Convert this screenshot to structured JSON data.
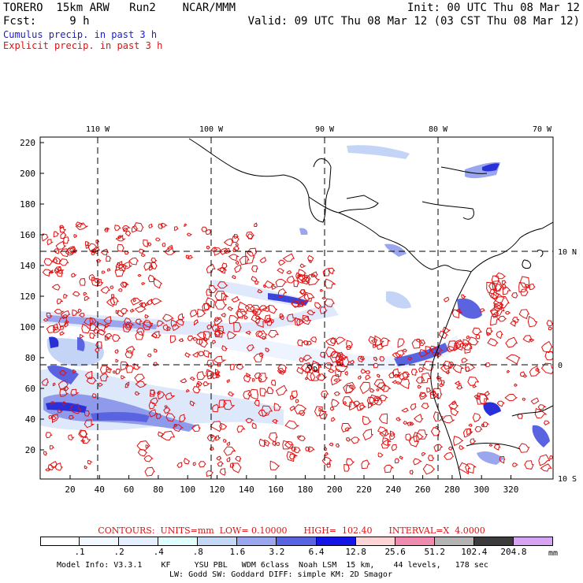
{
  "header": {
    "left_line1": "TORERO  15km ARW   Run2    NCAR/MMM",
    "left_line2": "Fcst:     9 h",
    "right_line1": "Init: 00 UTC Thu 08 Mar 12",
    "right_line2": "Valid: 09 UTC Thu 08 Mar 12 (03 CST Thu 08 Mar 12)",
    "cumulus_label": "Cumulus precip. in past 3 h",
    "explicit_label": "Explicit precip. in past 3 h"
  },
  "map": {
    "lon_labels": [
      "110 W",
      "100 W",
      "90 W",
      "80 W",
      "70 W"
    ],
    "lat_labels": [
      "10 N",
      "0",
      "10 S"
    ],
    "y_ticks": [
      "220",
      "200",
      "180",
      "160",
      "140",
      "120",
      "100",
      "80",
      "60",
      "40",
      "20"
    ],
    "x_ticks": [
      "20",
      "40",
      "60",
      "80",
      "100",
      "120",
      "140",
      "160",
      "180",
      "200",
      "220",
      "240",
      "260",
      "280",
      "300",
      "320"
    ]
  },
  "contours_caption": {
    "text": "CONTOURS:  UNITS=mm  LOW= 0.10000      HIGH=  102.40      INTERVAL=X  4.0000"
  },
  "colorbar": {
    "unit": "mm",
    "labels": [
      ".1",
      ".2",
      ".4",
      ".8",
      "1.6",
      "3.2",
      "6.4",
      "12.8",
      "25.6",
      "51.2",
      "102.4",
      "204.8"
    ],
    "colors": [
      "#ffffff",
      "#f2f8ff",
      "#e4f0ff",
      "#e0ffff",
      "#c4d8f6",
      "#9aa6ee",
      "#5a64e0",
      "#1414e6",
      "#ffd4d4",
      "#f08cb0",
      "#b4b4b4",
      "#3c3c3c",
      "#d7a4f4"
    ]
  },
  "footer": {
    "line1": "Model Info: V3.3.1    KF     YSU PBL   WDM 6class  Noah LSM  15 km,    44 levels,   178 sec",
    "line2": "LW: Godd SW: Goddard DIFF: simple KM: 2D Smagor"
  }
}
